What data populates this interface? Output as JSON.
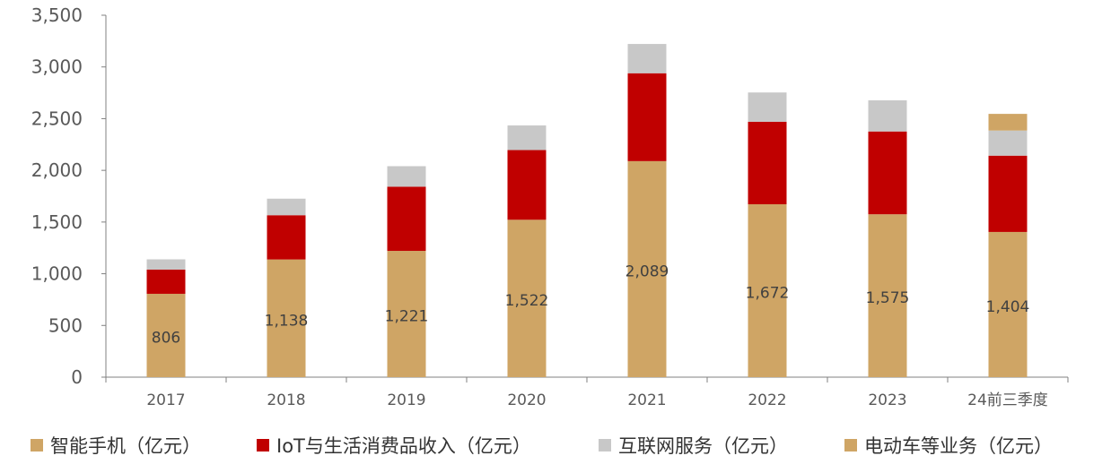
{
  "chart_data": {
    "type": "bar",
    "stacked": true,
    "categories": [
      "2017",
      "2018",
      "2019",
      "2020",
      "2021",
      "2022",
      "2023",
      "24前三季度"
    ],
    "ylim": [
      0,
      3500
    ],
    "yticks": [
      0,
      500,
      1000,
      1500,
      2000,
      2500,
      3000,
      3500
    ],
    "ytick_labels": [
      "0",
      "500",
      "1,000",
      "1,500",
      "2,000",
      "2,500",
      "3,000",
      "3,500"
    ],
    "series": [
      {
        "name": "智能手机（亿元）",
        "color": "#CFA565",
        "values": [
          806,
          1138,
          1221,
          1522,
          2089,
          1672,
          1575,
          1404
        ],
        "labels": [
          "806",
          "1,138",
          "1,221",
          "1,522",
          "2,089",
          "1,672",
          "1,575",
          "1,404"
        ]
      },
      {
        "name": "IoT与生活消费品收入（亿元）",
        "color": "#C00000",
        "values": [
          234,
          428,
          621,
          674,
          850,
          798,
          801,
          738
        ]
      },
      {
        "name": "互联网服务（亿元）",
        "color": "#C8C8C8",
        "values": [
          99,
          160,
          198,
          238,
          283,
          283,
          301,
          243
        ]
      },
      {
        "name": "电动车等业务（亿元）",
        "color": "#CFA565",
        "values": [
          0,
          0,
          0,
          0,
          0,
          0,
          0,
          161
        ]
      }
    ],
    "title": "",
    "xlabel": "",
    "ylabel": "",
    "grid": false,
    "legend_position": "bottom"
  }
}
